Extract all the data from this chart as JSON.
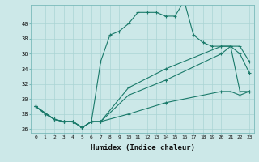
{
  "xlabel": "Humidex (Indice chaleur)",
  "bg_color": "#cce8e8",
  "grid_color": "#aad4d4",
  "line_color": "#1a7a6a",
  "ylim": [
    25.5,
    42.5
  ],
  "xlim": [
    -0.5,
    23.5
  ],
  "yticks": [
    26,
    28,
    30,
    32,
    34,
    36,
    38,
    40
  ],
  "xticks": [
    0,
    1,
    2,
    3,
    4,
    5,
    6,
    7,
    8,
    9,
    10,
    11,
    12,
    13,
    14,
    15,
    16,
    17,
    18,
    19,
    20,
    21,
    22,
    23
  ],
  "line1_x": [
    0,
    1,
    2,
    3,
    4,
    5,
    6,
    7,
    8,
    9,
    10,
    11,
    12,
    13,
    14,
    15,
    16,
    17,
    18,
    19,
    20,
    21,
    22,
    23
  ],
  "line1_y": [
    29,
    28,
    27.3,
    27,
    27,
    26.2,
    27,
    35,
    38.5,
    39,
    40,
    41.5,
    41.5,
    41.5,
    41,
    41,
    43,
    38.5,
    37.5,
    37,
    37,
    37,
    31,
    31
  ],
  "line2_x": [
    0,
    2,
    3,
    4,
    5,
    6,
    7,
    10,
    14,
    20,
    21,
    22,
    23
  ],
  "line2_y": [
    29,
    27.3,
    27,
    27,
    26.2,
    27,
    27,
    28,
    29.5,
    31,
    31,
    30.5,
    31
  ],
  "line3_x": [
    0,
    2,
    3,
    4,
    5,
    6,
    7,
    10,
    14,
    20,
    21,
    22,
    23
  ],
  "line3_y": [
    29,
    27.3,
    27,
    27,
    26.2,
    27,
    27,
    30.5,
    32.5,
    36,
    37,
    36,
    33.5
  ],
  "line4_x": [
    0,
    2,
    3,
    4,
    5,
    6,
    7,
    10,
    14,
    20,
    21,
    22,
    23
  ],
  "line4_y": [
    29,
    27.3,
    27,
    27,
    26.2,
    27,
    27,
    31.5,
    34,
    37,
    37,
    37,
    35
  ]
}
